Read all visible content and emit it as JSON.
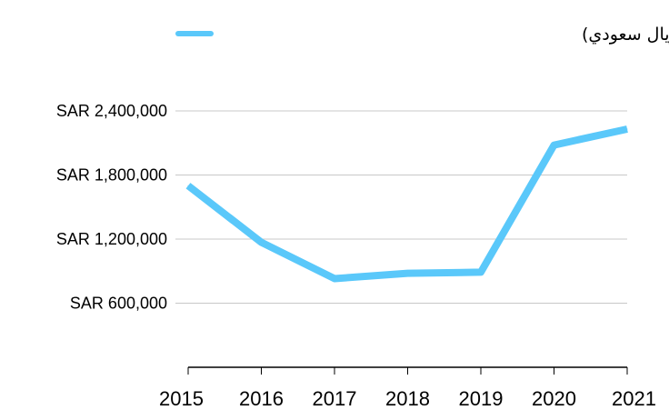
{
  "chart_data": {
    "type": "line",
    "title": "",
    "xlabel": "",
    "ylabel": "",
    "categories": [
      "2015",
      "2016",
      "2017",
      "2018",
      "2019",
      "2020",
      "2021"
    ],
    "series": [
      {
        "name": "قيمة الأسهم المتداولة (مليون ريال سعودي)",
        "color": "#5ac8fa",
        "values": [
          1700000,
          1170000,
          830000,
          880000,
          890000,
          2080000,
          2230000
        ]
      }
    ],
    "yticks": [
      600000,
      1200000,
      1800000,
      2400000
    ],
    "ytick_labels": [
      "SAR 600,000",
      "SAR 1,200,000",
      "SAR 1,800,000",
      "SAR 2,400,000"
    ],
    "ylim": [
      0,
      2400000
    ],
    "grid": true,
    "legend_position": "top-center"
  }
}
